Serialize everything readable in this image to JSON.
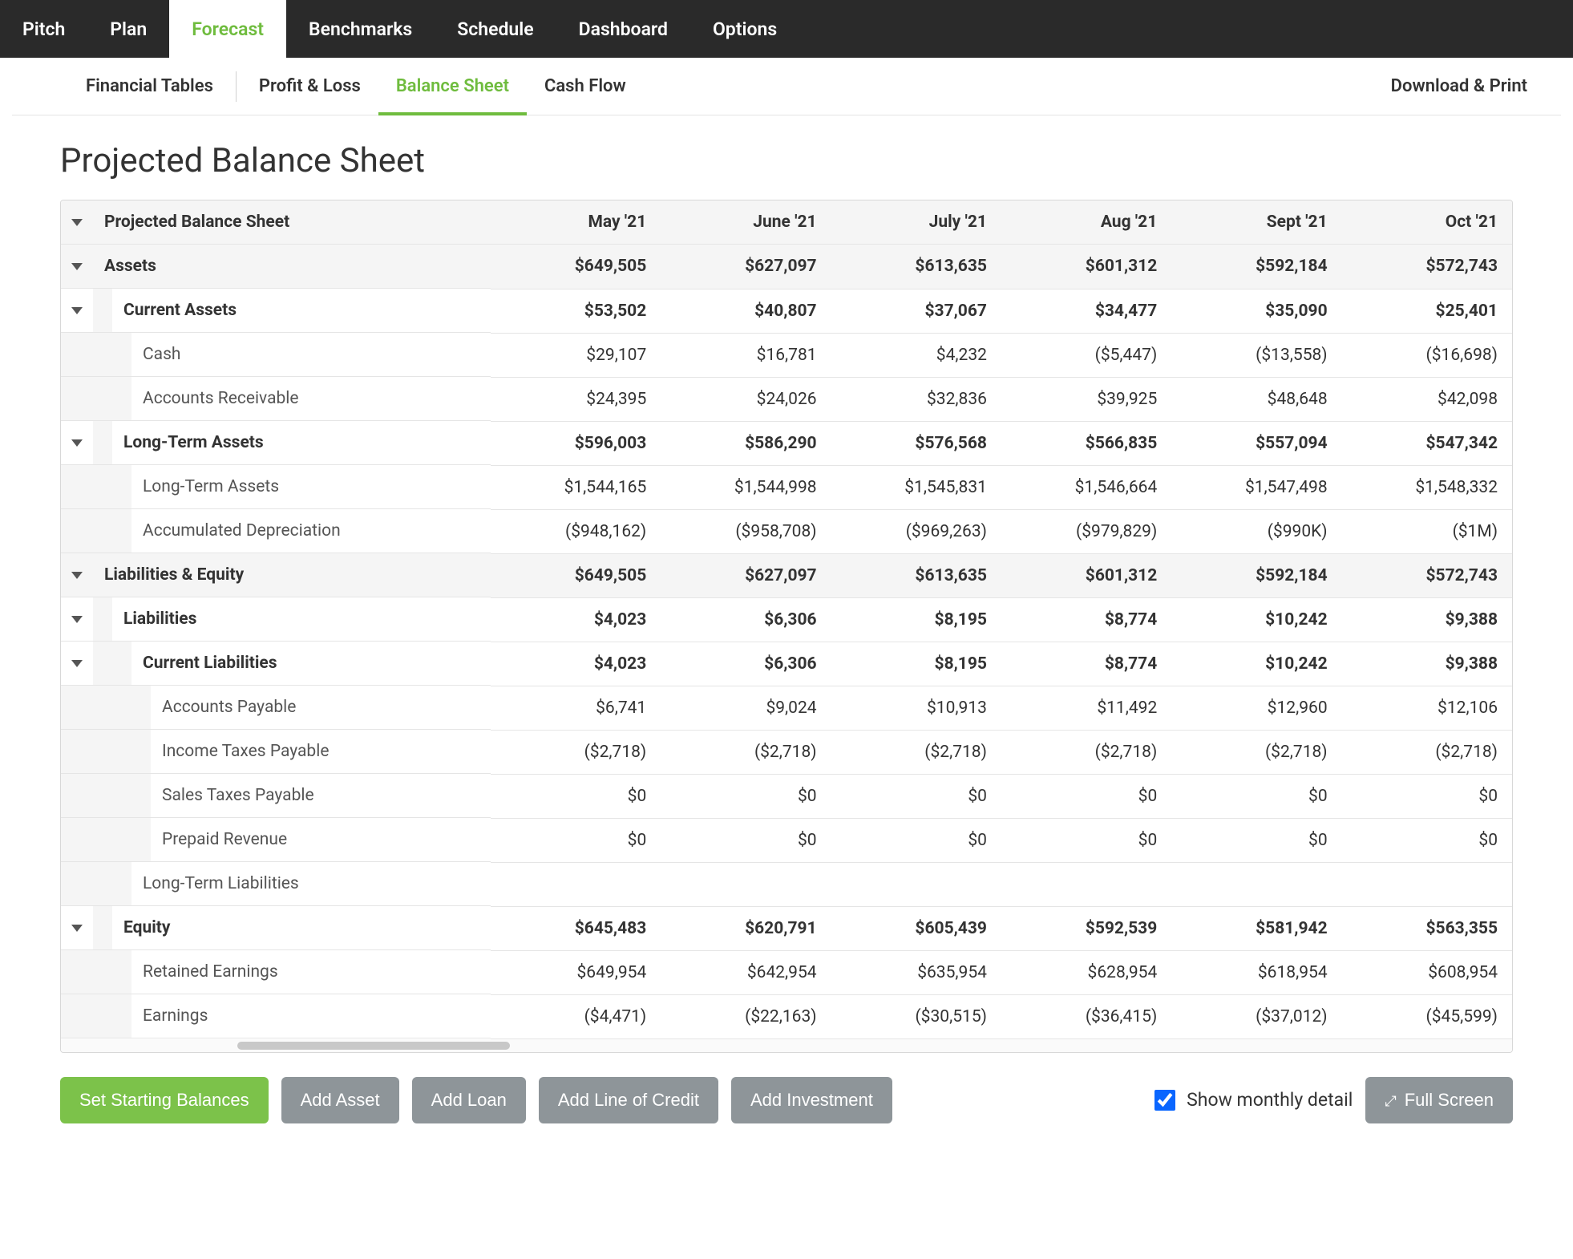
{
  "colors": {
    "accent_green": "#6fbc3e",
    "btn_green": "#7cc24a",
    "btn_grey": "#8e9599",
    "nav_bg": "#2a2a2a",
    "border": "#e5e5e5",
    "header_bg": "#f5f5f5"
  },
  "top_nav": {
    "items": [
      "Pitch",
      "Plan",
      "Forecast",
      "Benchmarks",
      "Schedule",
      "Dashboard",
      "Options"
    ],
    "active_index": 2
  },
  "sub_nav": {
    "items": [
      "Financial Tables",
      "Profit & Loss",
      "Balance Sheet",
      "Cash Flow"
    ],
    "active_index": 2,
    "right_action": "Download & Print"
  },
  "page_title": "Projected Balance Sheet",
  "table": {
    "title": "Projected Balance Sheet",
    "columns": [
      "May '21",
      "June '21",
      "July '21",
      "Aug '21",
      "Sept '21",
      "Oct '21"
    ],
    "rows": [
      {
        "label": "Assets",
        "level": 0,
        "expandable": true,
        "values": [
          "$649,505",
          "$627,097",
          "$613,635",
          "$601,312",
          "$592,184",
          "$572,743"
        ]
      },
      {
        "label": "Current Assets",
        "level": 1,
        "expandable": true,
        "values": [
          "$53,502",
          "$40,807",
          "$37,067",
          "$34,477",
          "$35,090",
          "$25,401"
        ]
      },
      {
        "label": "Cash",
        "level": 2,
        "expandable": false,
        "values": [
          "$29,107",
          "$16,781",
          "$4,232",
          "($5,447)",
          "($13,558)",
          "($16,698)"
        ]
      },
      {
        "label": "Accounts Receivable",
        "level": 2,
        "expandable": false,
        "values": [
          "$24,395",
          "$24,026",
          "$32,836",
          "$39,925",
          "$48,648",
          "$42,098"
        ]
      },
      {
        "label": "Long-Term Assets",
        "level": 1,
        "expandable": true,
        "values": [
          "$596,003",
          "$586,290",
          "$576,568",
          "$566,835",
          "$557,094",
          "$547,342"
        ]
      },
      {
        "label": "Long-Term Assets",
        "level": 2,
        "expandable": false,
        "values": [
          "$1,544,165",
          "$1,544,998",
          "$1,545,831",
          "$1,546,664",
          "$1,547,498",
          "$1,548,332"
        ]
      },
      {
        "label": "Accumulated Depreciation",
        "level": 2,
        "expandable": false,
        "values": [
          "($948,162)",
          "($958,708)",
          "($969,263)",
          "($979,829)",
          "($990K)",
          "($1M)"
        ]
      },
      {
        "label": "Liabilities & Equity",
        "level": 0,
        "expandable": true,
        "values": [
          "$649,505",
          "$627,097",
          "$613,635",
          "$601,312",
          "$592,184",
          "$572,743"
        ]
      },
      {
        "label": "Liabilities",
        "level": 1,
        "expandable": true,
        "values": [
          "$4,023",
          "$6,306",
          "$8,195",
          "$8,774",
          "$10,242",
          "$9,388"
        ]
      },
      {
        "label": "Current Liabilities",
        "level": 2,
        "expandable": true,
        "values": [
          "$4,023",
          "$6,306",
          "$8,195",
          "$8,774",
          "$10,242",
          "$9,388"
        ]
      },
      {
        "label": "Accounts Payable",
        "level": 3,
        "expandable": false,
        "values": [
          "$6,741",
          "$9,024",
          "$10,913",
          "$11,492",
          "$12,960",
          "$12,106"
        ]
      },
      {
        "label": "Income Taxes Payable",
        "level": 3,
        "expandable": false,
        "values": [
          "($2,718)",
          "($2,718)",
          "($2,718)",
          "($2,718)",
          "($2,718)",
          "($2,718)"
        ]
      },
      {
        "label": "Sales Taxes Payable",
        "level": 3,
        "expandable": false,
        "values": [
          "$0",
          "$0",
          "$0",
          "$0",
          "$0",
          "$0"
        ]
      },
      {
        "label": "Prepaid Revenue",
        "level": 3,
        "expandable": false,
        "values": [
          "$0",
          "$0",
          "$0",
          "$0",
          "$0",
          "$0"
        ]
      },
      {
        "label": "Long-Term Liabilities",
        "level": 2,
        "expandable": false,
        "values": [
          "",
          "",
          "",
          "",
          "",
          ""
        ]
      },
      {
        "label": "Equity",
        "level": 1,
        "expandable": true,
        "values": [
          "$645,483",
          "$620,791",
          "$605,439",
          "$592,539",
          "$581,942",
          "$563,355"
        ]
      },
      {
        "label": "Retained Earnings",
        "level": 2,
        "expandable": false,
        "values": [
          "$649,954",
          "$642,954",
          "$635,954",
          "$628,954",
          "$618,954",
          "$608,954"
        ]
      },
      {
        "label": "Earnings",
        "level": 2,
        "expandable": false,
        "values": [
          "($4,471)",
          "($22,163)",
          "($30,515)",
          "($36,415)",
          "($37,012)",
          "($45,599)"
        ]
      }
    ]
  },
  "footer": {
    "set_balances": "Set Starting Balances",
    "add_asset": "Add Asset",
    "add_loan": "Add Loan",
    "add_loc": "Add Line of Credit",
    "add_investment": "Add Investment",
    "show_monthly": "Show monthly detail",
    "show_monthly_checked": true,
    "full_screen": "Full Screen"
  }
}
